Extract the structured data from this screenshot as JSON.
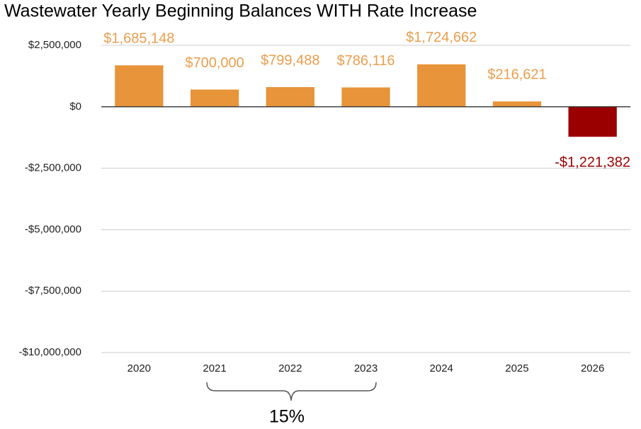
{
  "chart_data": {
    "type": "bar",
    "title": "Wastewater Yearly Beginning Balances WITH Rate Increase",
    "categories": [
      "2020",
      "2021",
      "2022",
      "2023",
      "2024",
      "2025",
      "2026"
    ],
    "values": [
      1685148,
      700000,
      799488,
      786116,
      1724662,
      216621,
      -1221382
    ],
    "value_labels": [
      "$1,685,148",
      "$700,000",
      "$799,488",
      "$786,116",
      "$1,724,662",
      "$216,621",
      "-$1,221,382"
    ],
    "colors": [
      "#e8943a",
      "#e8943a",
      "#e8943a",
      "#e8943a",
      "#e8943a",
      "#e8943a",
      "#9b0000"
    ],
    "ylim": [
      -10000000,
      2500000
    ],
    "yticks": [
      {
        "value": -10000000,
        "label": "-$10,000,000"
      },
      {
        "value": -7500000,
        "label": "-$7,500,000"
      },
      {
        "value": -5000000,
        "label": "-$5,000,000"
      },
      {
        "value": -2500000,
        "label": "-$2,500,000"
      },
      {
        "value": 0,
        "label": "$0"
      },
      {
        "value": 2500000,
        "label": "$2,500,000"
      }
    ],
    "grid": true,
    "annotation": "15%"
  }
}
